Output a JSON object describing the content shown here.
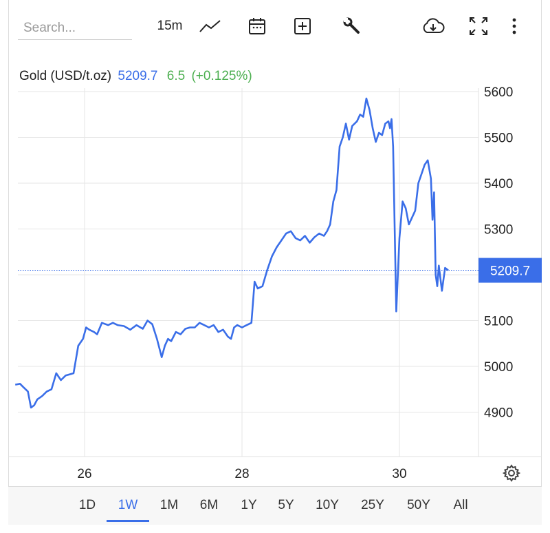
{
  "toolbar": {
    "search_placeholder": "Search...",
    "interval": "15m",
    "icons": [
      "line-chart-icon",
      "calendar-icon",
      "add-box-icon",
      "wrench-icon",
      "cloud-download-icon",
      "fullscreen-icon",
      "more-vertical-icon"
    ]
  },
  "legend": {
    "instrument": "Gold (USD/t.oz)",
    "price": "5209.7",
    "change": "6.5",
    "change_pct": "(+0.125%)"
  },
  "colors": {
    "line": "#3a6ee8",
    "change_up": "#4caf50",
    "grid": "#e6e6e6",
    "tag_bg": "#3a6ee8"
  },
  "chart_data": {
    "type": "line",
    "title": "Gold (USD/t.oz)",
    "x_ticks": [
      "26",
      "28",
      "30"
    ],
    "y_ticks": [
      "4900",
      "5000",
      "5100",
      "5200",
      "5300",
      "5400",
      "5500",
      "5600"
    ],
    "ylim": [
      4800,
      5650
    ],
    "x_range": [
      25.1,
      30.7
    ],
    "last_price_label": "5209.7",
    "last_price": 5209.7,
    "grid": true,
    "series": [
      {
        "x": [
          25.12,
          25.18,
          25.22,
          25.28,
          25.32,
          25.36,
          25.4,
          25.46,
          25.52,
          25.58,
          25.64,
          25.7,
          25.76,
          25.8,
          25.86,
          25.92,
          25.98,
          26.02,
          26.06,
          26.12,
          26.16,
          26.22,
          26.3,
          26.36,
          26.42,
          26.5,
          26.58,
          26.66,
          26.74,
          26.8,
          26.86,
          26.92,
          26.98,
          27.02,
          27.06,
          27.1,
          27.16,
          27.22,
          27.28,
          27.34,
          27.4,
          27.46,
          27.52,
          27.58,
          27.64,
          27.7,
          27.76,
          27.82,
          27.86,
          27.9,
          27.94,
          28.0,
          28.06,
          28.12,
          28.16,
          28.2,
          28.26,
          28.32,
          28.38,
          28.44,
          28.5,
          28.56,
          28.62,
          28.68,
          28.74,
          28.8,
          28.86,
          28.92,
          28.98,
          29.04,
          29.08,
          29.12,
          29.16,
          29.2,
          29.24,
          29.28,
          29.32,
          29.36,
          29.4,
          29.46,
          29.5,
          29.54,
          29.58,
          29.62,
          29.66,
          29.7,
          29.74,
          29.78,
          29.82,
          29.86,
          29.88,
          29.9,
          29.92,
          29.94,
          29.96,
          30.0,
          30.04,
          30.08,
          30.12,
          30.16,
          30.2,
          30.24,
          30.28,
          30.32,
          30.36,
          30.4,
          30.42,
          30.44,
          30.46,
          30.48,
          30.5,
          30.54,
          30.58,
          30.62
        ],
        "values": [
          4960,
          4962,
          4955,
          4945,
          4910,
          4915,
          4928,
          4935,
          4945,
          4950,
          4985,
          4970,
          4980,
          4982,
          4985,
          5045,
          5060,
          5085,
          5080,
          5075,
          5070,
          5095,
          5090,
          5095,
          5090,
          5088,
          5080,
          5090,
          5082,
          5100,
          5092,
          5060,
          5020,
          5045,
          5060,
          5055,
          5075,
          5070,
          5082,
          5085,
          5085,
          5095,
          5090,
          5085,
          5090,
          5075,
          5080,
          5065,
          5060,
          5085,
          5090,
          5085,
          5090,
          5095,
          5185,
          5170,
          5175,
          5210,
          5240,
          5260,
          5275,
          5290,
          5295,
          5280,
          5275,
          5285,
          5270,
          5282,
          5290,
          5285,
          5295,
          5310,
          5360,
          5385,
          5480,
          5500,
          5530,
          5495,
          5525,
          5535,
          5550,
          5545,
          5585,
          5560,
          5520,
          5490,
          5510,
          5505,
          5530,
          5535,
          5520,
          5540,
          5480,
          5300,
          5120,
          5280,
          5360,
          5345,
          5310,
          5325,
          5340,
          5400,
          5420,
          5440,
          5450,
          5410,
          5320,
          5380,
          5200,
          5175,
          5220,
          5165,
          5215,
          5209.7
        ]
      }
    ]
  },
  "ranges": {
    "items": [
      "1D",
      "1W",
      "1M",
      "6M",
      "1Y",
      "5Y",
      "10Y",
      "25Y",
      "50Y",
      "All"
    ],
    "active": "1W"
  }
}
